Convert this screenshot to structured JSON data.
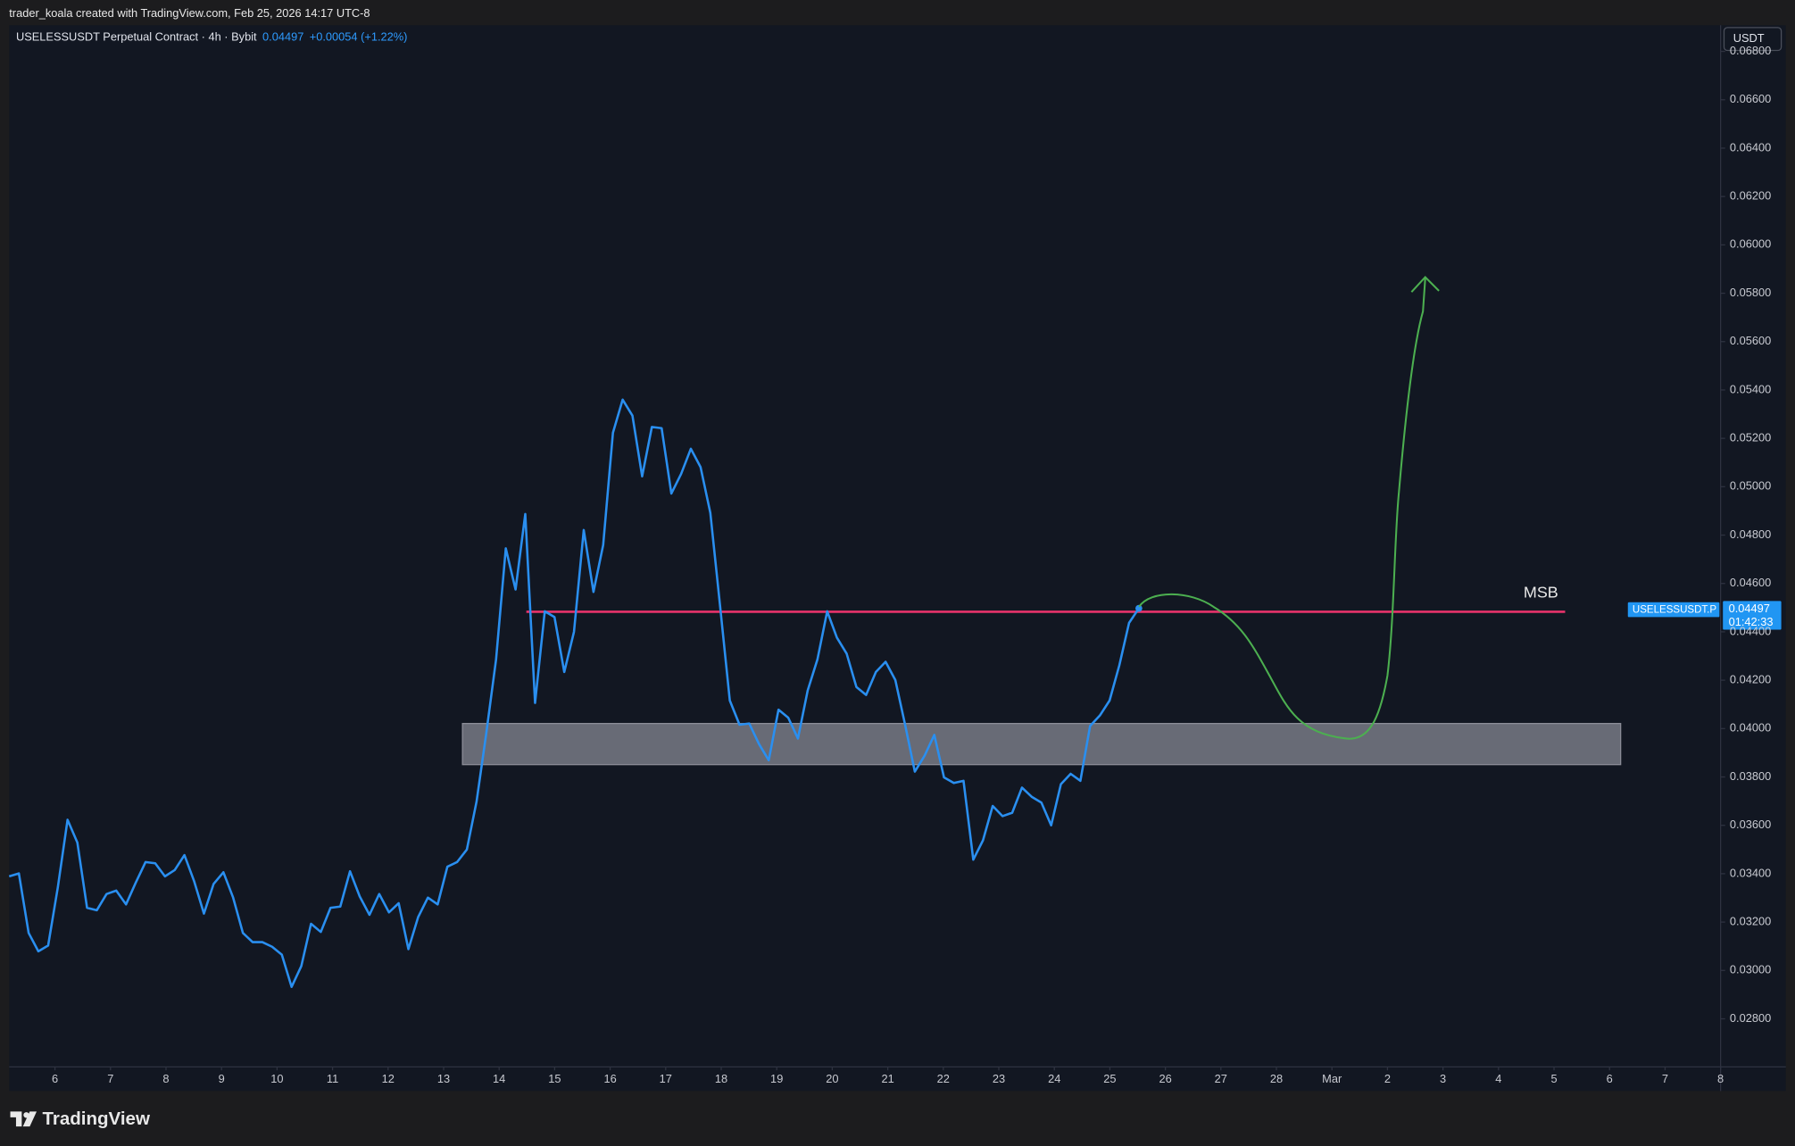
{
  "credit": "trader_koala created with TradingView.com, Feb 25, 2026 14:17 UTC-8",
  "header": {
    "symbol": "USELESSUSDT Perpetual Contract · 4h · Bybit",
    "last": "0.04497",
    "change": "+0.00054 (+1.22%)"
  },
  "currency": "USDT",
  "price_tag": {
    "symbol": "USELESSUSDT.P",
    "price": "0.04497",
    "countdown": "01:42:33"
  },
  "footer": {
    "brand": "TradingView"
  },
  "chart_data": {
    "type": "line",
    "color": "#2a8ff0",
    "grid": false,
    "xlim": [
      5.175,
      36
    ],
    "ylim": [
      0.02601,
      0.06908
    ],
    "xticks": [
      6,
      7,
      8,
      9,
      10,
      11,
      12,
      13,
      14,
      15,
      16,
      17,
      18,
      19,
      20,
      21,
      22,
      23,
      24,
      25,
      26,
      27,
      28,
      {
        "value": 29,
        "label": "Mar"
      },
      {
        "value": 30,
        "label": "2"
      },
      {
        "value": 31,
        "label": "3"
      },
      {
        "value": 32,
        "label": "4"
      },
      {
        "value": 33,
        "label": "5"
      },
      {
        "value": 34,
        "label": "6"
      },
      {
        "value": 35,
        "label": "7"
      },
      {
        "value": 36,
        "label": "8"
      }
    ],
    "yticks": [
      {
        "value": 0.028,
        "label": "0.02800"
      },
      {
        "value": 0.03,
        "label": "0.03000"
      },
      {
        "value": 0.032,
        "label": "0.03200"
      },
      {
        "value": 0.034,
        "label": "0.03400"
      },
      {
        "value": 0.036,
        "label": "0.03600"
      },
      {
        "value": 0.038,
        "label": "0.03800"
      },
      {
        "value": 0.04,
        "label": "0.04000"
      },
      {
        "value": 0.042,
        "label": "0.04200"
      },
      {
        "value": 0.044,
        "label": "0.04400"
      },
      {
        "value": 0.046,
        "label": "0.04600"
      },
      {
        "value": 0.048,
        "label": "0.04800"
      },
      {
        "value": 0.05,
        "label": "0.05000"
      },
      {
        "value": 0.052,
        "label": "0.05200"
      },
      {
        "value": 0.054,
        "label": "0.05400"
      },
      {
        "value": 0.056,
        "label": "0.05600"
      },
      {
        "value": 0.058,
        "label": "0.05800"
      },
      {
        "value": 0.06,
        "label": "0.06000"
      },
      {
        "value": 0.062,
        "label": "0.06200"
      },
      {
        "value": 0.064,
        "label": "0.06400"
      },
      {
        "value": 0.066,
        "label": "0.06600"
      },
      {
        "value": 0.068,
        "label": "0.06800"
      }
    ],
    "x": [
      5.175,
      5.35,
      5.526,
      5.701,
      5.877,
      6.052,
      6.227,
      6.403,
      6.578,
      6.754,
      6.929,
      7.104,
      7.28,
      7.455,
      7.631,
      7.806,
      7.981,
      8.157,
      8.332,
      8.508,
      8.683,
      8.858,
      9.034,
      9.209,
      9.385,
      9.56,
      9.735,
      9.911,
      10.086,
      10.262,
      10.437,
      10.612,
      10.788,
      10.963,
      11.139,
      11.314,
      11.489,
      11.665,
      11.84,
      12.016,
      12.191,
      12.366,
      12.542,
      12.717,
      12.893,
      13.068,
      13.243,
      13.419,
      13.594,
      13.77,
      13.945,
      14.12,
      14.296,
      14.471,
      14.647,
      14.822,
      14.997,
      15.173,
      15.348,
      15.524,
      15.699,
      15.874,
      16.05,
      16.225,
      16.401,
      16.576,
      16.751,
      16.927,
      17.102,
      17.278,
      17.453,
      17.628,
      17.804,
      17.979,
      18.155,
      18.33,
      18.505,
      18.681,
      18.856,
      19.032,
      19.207,
      19.382,
      19.558,
      19.733,
      19.909,
      20.084,
      20.259,
      20.435,
      20.61,
      20.786,
      20.961,
      21.136,
      21.312,
      21.487,
      21.663,
      21.838,
      22.013,
      22.189,
      22.364,
      22.54,
      22.715,
      22.89,
      23.066,
      23.241,
      23.417,
      23.592,
      23.767,
      23.943,
      24.118,
      24.294,
      24.469,
      24.644,
      24.82,
      24.995,
      25.171,
      25.346,
      25.522
    ],
    "values": [
      0.03389,
      0.03401,
      0.03155,
      0.03079,
      0.03103,
      0.03344,
      0.03623,
      0.03529,
      0.03259,
      0.03249,
      0.03316,
      0.0333,
      0.03273,
      0.03363,
      0.03448,
      0.03443,
      0.03389,
      0.03415,
      0.03477,
      0.03368,
      0.03235,
      0.03358,
      0.03406,
      0.03301,
      0.03155,
      0.03117,
      0.03117,
      0.03098,
      0.03065,
      0.02932,
      0.03018,
      0.03193,
      0.03159,
      0.03259,
      0.03264,
      0.0341,
      0.03306,
      0.0323,
      0.03316,
      0.0324,
      0.03278,
      0.03088,
      0.03221,
      0.03301,
      0.03273,
      0.03429,
      0.03448,
      0.035,
      0.03699,
      0.03983,
      0.04286,
      0.04745,
      0.04575,
      0.04887,
      0.04106,
      0.04485,
      0.04461,
      0.04234,
      0.044,
      0.04821,
      0.04565,
      0.04759,
      0.05223,
      0.0536,
      0.05294,
      0.05043,
      0.05247,
      0.05242,
      0.04972,
      0.05053,
      0.05157,
      0.05081,
      0.04892,
      0.04508,
      0.04116,
      0.04016,
      0.04021,
      0.03936,
      0.03869,
      0.04078,
      0.04045,
      0.03959,
      0.04158,
      0.04286,
      0.04485,
      0.04376,
      0.0431,
      0.04172,
      0.04139,
      0.04234,
      0.04276,
      0.04201,
      0.04016,
      0.03822,
      0.03888,
      0.03974,
      0.03798,
      0.03775,
      0.03784,
      0.03458,
      0.03538,
      0.0368,
      0.03638,
      0.03652,
      0.03756,
      0.03718,
      0.03694,
      0.036,
      0.0377,
      0.03813,
      0.03784,
      0.04011,
      0.04054,
      0.04116,
      0.04262,
      0.04437,
      0.04497
    ],
    "msb": {
      "label": "MSB",
      "value": 0.04483,
      "x0": 14.49,
      "x1": 33.2,
      "color": "#e8336b"
    },
    "zone": {
      "top": 0.04021,
      "bottom": 0.03851,
      "x0": 13.34,
      "x1": 34.2
    }
  }
}
